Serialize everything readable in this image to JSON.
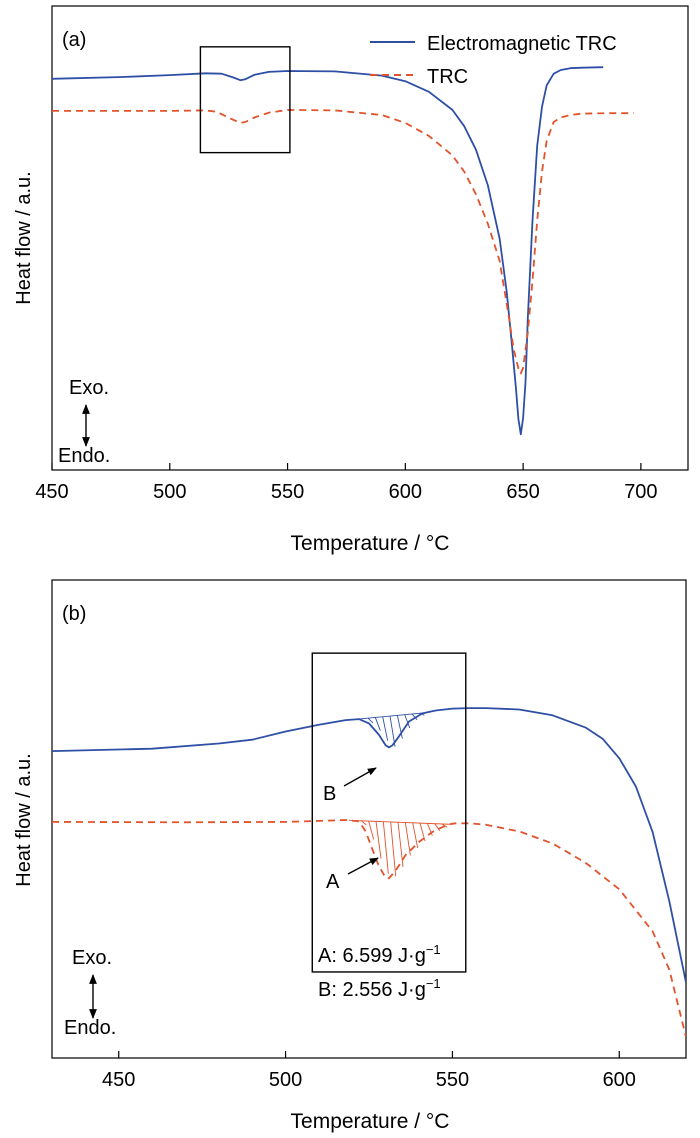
{
  "colors": {
    "electromagnetic": "#2e4fa6",
    "trc": "#e2532b",
    "axis": "#000000"
  },
  "chart_data": [
    {
      "type": "line",
      "panel_label": "(a)",
      "xlabel": "Temperature / °C",
      "ylabel": "Heat flow / a.u.",
      "xlim": [
        450,
        720
      ],
      "ylim": [
        0,
        100
      ],
      "xticks": [
        "450",
        "500",
        "550",
        "600",
        "650",
        "700"
      ],
      "y_ticks_shown": false,
      "legend": {
        "position": "top-right",
        "entries": [
          "Electromagnetic TRC",
          "TRC"
        ]
      },
      "direction_labels": {
        "up": "Exo.",
        "down": "Endo."
      },
      "inset_box": {
        "x": [
          513,
          551
        ],
        "y": [
          68.4,
          91.2
        ]
      },
      "series": [
        {
          "name": "Electromagnetic TRC",
          "style": "solid",
          "x": [
            450,
            480,
            500,
            515,
            522,
            527,
            530,
            532,
            536,
            542,
            550,
            570,
            590,
            600,
            610,
            620,
            625,
            630,
            635,
            640,
            643,
            645,
            647,
            648,
            649,
            650,
            651,
            652,
            654,
            656,
            658,
            660,
            663,
            666,
            670,
            675,
            684
          ],
          "y": [
            84.3,
            84.7,
            85.1,
            85.5,
            85.4,
            84.6,
            84.0,
            84.2,
            85.2,
            85.8,
            86.0,
            85.9,
            85.0,
            83.8,
            81.5,
            77.6,
            74.1,
            69.0,
            61.4,
            49.9,
            38.6,
            28.4,
            17.5,
            11.0,
            7.7,
            11.2,
            18.9,
            32.7,
            53.8,
            69.9,
            78.3,
            82.9,
            85.4,
            86.2,
            86.6,
            86.7,
            86.8
          ]
        },
        {
          "name": "TRC",
          "style": "dashed",
          "x": [
            450,
            480,
            500,
            515,
            520,
            525,
            530,
            532,
            536,
            542,
            550,
            570,
            590,
            600,
            610,
            620,
            625,
            630,
            635,
            640,
            644,
            646,
            648,
            649,
            650,
            652,
            654,
            656,
            658,
            660,
            663,
            666,
            670,
            675,
            685,
            697
          ],
          "y": [
            77.4,
            77.4,
            77.4,
            77.5,
            77.2,
            75.9,
            74.8,
            75.0,
            76.0,
            77.0,
            77.6,
            77.5,
            76.5,
            74.8,
            72.0,
            67.8,
            64.3,
            59.4,
            53.1,
            45.1,
            32.8,
            26.0,
            21.9,
            20.8,
            22.0,
            29.6,
            40.8,
            53.8,
            64.3,
            71.0,
            75.0,
            76.0,
            76.5,
            76.8,
            76.9,
            76.9
          ]
        }
      ]
    },
    {
      "type": "line",
      "panel_label": "(b)",
      "xlabel": "Temperature / °C",
      "ylabel": "Heat flow / a.u.",
      "xlim": [
        430,
        620
      ],
      "ylim": [
        0,
        100
      ],
      "xticks": [
        "450",
        "500",
        "550",
        "600"
      ],
      "y_ticks_shown": false,
      "direction_labels": {
        "up": "Exo.",
        "down": "Endo."
      },
      "inset_box": {
        "x": [
          508,
          554
        ],
        "y": [
          18.0,
          84.7
        ]
      },
      "annotations": [
        {
          "label": "A",
          "series": "TRC",
          "peak_x": 530
        },
        {
          "label": "B",
          "series": "Electromagnetic TRC",
          "peak_x": 531
        }
      ],
      "enthalpy_texts": [
        "A: 6.599 J·g",
        "B: 2.556 J·g"
      ],
      "enthalpy_unit_superscript": "−1",
      "series": [
        {
          "name": "Electromagnetic TRC",
          "style": "solid",
          "x": [
            430,
            460,
            480,
            490,
            500,
            510,
            518,
            522,
            525,
            528,
            530,
            531,
            532,
            534,
            537,
            541,
            545,
            550,
            555,
            560,
            570,
            580,
            590,
            595,
            600,
            605,
            610,
            615,
            620
          ],
          "y": [
            64.2,
            64.7,
            65.8,
            66.6,
            68.3,
            69.7,
            70.7,
            70.9,
            70.0,
            67.6,
            65.4,
            65.0,
            65.4,
            67.3,
            70.4,
            72.1,
            72.7,
            73.1,
            73.2,
            73.2,
            72.9,
            71.7,
            69.1,
            66.8,
            62.7,
            56.8,
            47.3,
            32.8,
            15.8
          ]
        },
        {
          "name": "TRC",
          "style": "dashed",
          "x": [
            430,
            470,
            500,
            510,
            518,
            522,
            524,
            526,
            528,
            530,
            531,
            533,
            536,
            540,
            544,
            547,
            549,
            551,
            555,
            560,
            570,
            580,
            590,
            600,
            610,
            615,
            620
          ],
          "y": [
            49.4,
            49.3,
            49.4,
            49.6,
            49.8,
            49.5,
            47.4,
            43.7,
            40.1,
            37.7,
            37.6,
            39.2,
            42.5,
            45.2,
            47.3,
            48.3,
            48.9,
            49.1,
            49.1,
            48.8,
            47.4,
            44.9,
            40.8,
            35.3,
            26.5,
            18.5,
            4.4
          ]
        }
      ]
    }
  ]
}
